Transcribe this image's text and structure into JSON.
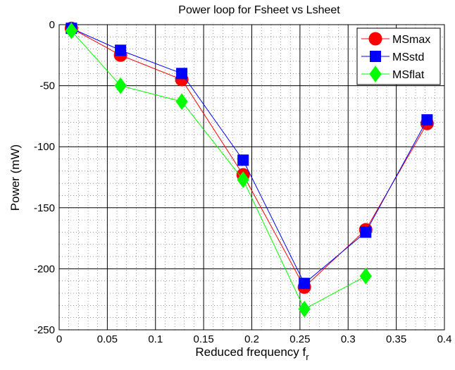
{
  "chart_data": {
    "type": "line",
    "title": "Power loop for Fsheet vs Lsheet",
    "xlabel": "Reduced frequency f",
    "xlabel_subscript": "r",
    "ylabel": "Power (mW)",
    "xlim": [
      0,
      0.4
    ],
    "ylim": [
      -250,
      0
    ],
    "x_ticks": [
      0,
      0.05,
      0.1,
      0.15,
      0.2,
      0.25,
      0.3,
      0.35,
      0.4
    ],
    "x_tick_labels": [
      "0",
      "0.05",
      "0.1",
      "0.15",
      "0.2",
      "0.25",
      "0.3",
      "0.35",
      "0.4"
    ],
    "y_ticks": [
      0,
      -50,
      -100,
      -150,
      -200,
      -250
    ],
    "y_tick_labels": [
      "0",
      "-50",
      "-100",
      "-150",
      "-200",
      "-250"
    ],
    "grid": true,
    "minor_grid": true,
    "legend_position": "top-right",
    "series": [
      {
        "name": "MSmax",
        "color": "#ff0000",
        "marker": "circle",
        "x": [
          0.0127,
          0.0637,
          0.1273,
          0.191,
          0.2546,
          0.3183,
          0.382
        ],
        "y": [
          -3,
          -25,
          -45,
          -123,
          -215,
          -168,
          -81
        ]
      },
      {
        "name": "MSstd",
        "color": "#0000ff",
        "marker": "square",
        "x": [
          0.0127,
          0.0637,
          0.1273,
          0.191,
          0.2546,
          0.3183,
          0.382
        ],
        "y": [
          -3,
          -21,
          -40,
          -111,
          -212,
          -170,
          -78
        ]
      },
      {
        "name": "MSflat",
        "color": "#00ff00",
        "marker": "diamond",
        "x": [
          0.0127,
          0.0637,
          0.1273,
          0.191,
          0.2546,
          0.3183
        ],
        "y": [
          -5,
          -50,
          -63,
          -127,
          -233,
          -206
        ]
      }
    ]
  }
}
